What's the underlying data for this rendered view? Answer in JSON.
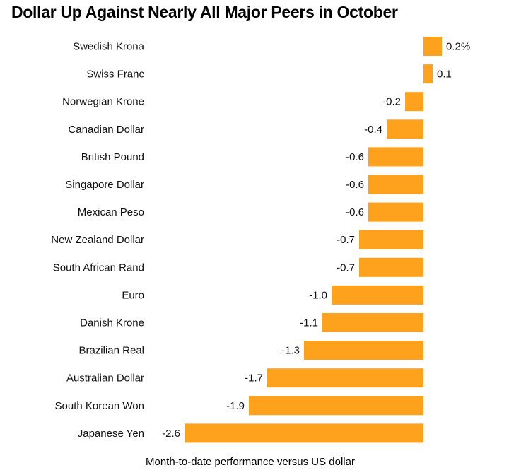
{
  "chart_data": {
    "type": "bar",
    "orientation": "horizontal",
    "title": "Dollar Up Against Nearly All Major Peers in October",
    "xlabel": "Month-to-date performance versus US dollar",
    "ylabel": "",
    "categories": [
      "Swedish Krona",
      "Swiss Franc",
      "Norwegian Krone",
      "Canadian Dollar",
      "British Pound",
      "Singapore Dollar",
      "Mexican Peso",
      "New Zealand Dollar",
      "South African Rand",
      "Euro",
      "Danish Krone",
      "Brazilian Real",
      "Australian Dollar",
      "South Korean Won",
      "Japanese Yen"
    ],
    "values": [
      0.2,
      0.1,
      -0.2,
      -0.4,
      -0.6,
      -0.6,
      -0.6,
      -0.7,
      -0.7,
      -1.0,
      -1.1,
      -1.3,
      -1.7,
      -1.9,
      -2.6
    ],
    "value_labels": [
      "0.2%",
      "0.1",
      "-0.2",
      "-0.4",
      "-0.6",
      "-0.6",
      "-0.6",
      "-0.7",
      "-0.7",
      "-1.0",
      "-1.1",
      "-1.3",
      "-1.7",
      "-1.9",
      "-2.6"
    ],
    "xlim": [
      -2.6,
      0.2
    ],
    "grid": false,
    "legend": "none",
    "bar_color": "#fea11c"
  }
}
